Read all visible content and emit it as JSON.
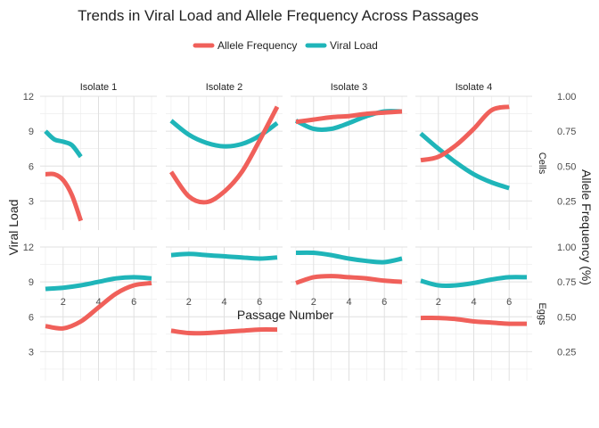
{
  "chart_data": {
    "type": "line",
    "title": "Trends in Viral Load and Allele Frequency Across Passages",
    "xlabel": "Passage Number",
    "ylabel_left": "Viral Load",
    "ylabel_right": "Allele Frequency (%)",
    "legend": {
      "position": "top",
      "entries": [
        {
          "name": "Allele Frequency",
          "color": "#F0605A"
        },
        {
          "name": "Viral Load",
          "color": "#1FB5B9"
        }
      ]
    },
    "columns": [
      "Isolate 1",
      "Isolate 2",
      "Isolate 3",
      "Isolate 4"
    ],
    "rows": [
      "Cells",
      "Eggs"
    ],
    "x_ticks": [
      2,
      4,
      6
    ],
    "xlim": [
      0.7,
      7.3
    ],
    "y_left_ticks": [
      3,
      6,
      9,
      12
    ],
    "ylim_left": [
      0.5,
      12
    ],
    "y_right_ticks": [
      "0.25",
      "0.50",
      "0.75",
      "1.00"
    ],
    "grid": true,
    "panels": [
      {
        "row": "Cells",
        "col": "Isolate 1",
        "series": [
          {
            "name": "Viral Load",
            "x": [
              1,
              1.5,
              2,
              2.5,
              3
            ],
            "y": [
              9.0,
              8.3,
              8.1,
              7.8,
              6.8
            ]
          },
          {
            "name": "Allele Frequency",
            "x": [
              1,
              1.5,
              2,
              2.5,
              3
            ],
            "y": [
              5.3,
              5.3,
              4.8,
              3.5,
              1.3
            ]
          }
        ]
      },
      {
        "row": "Cells",
        "col": "Isolate 2",
        "series": [
          {
            "name": "Viral Load",
            "x": [
              1,
              2,
              3,
              4,
              5,
              6,
              7
            ],
            "y": [
              9.9,
              8.7,
              8.0,
              7.7,
              7.9,
              8.6,
              9.7
            ]
          },
          {
            "name": "Allele Frequency",
            "x": [
              1,
              2,
              3,
              4,
              5,
              6,
              7
            ],
            "y": [
              5.5,
              3.4,
              2.9,
              3.8,
              5.5,
              8.2,
              11.1
            ]
          }
        ]
      },
      {
        "row": "Cells",
        "col": "Isolate 3",
        "series": [
          {
            "name": "Viral Load",
            "x": [
              1,
              2,
              3,
              4,
              5,
              6,
              7
            ],
            "y": [
              9.9,
              9.2,
              9.2,
              9.7,
              10.3,
              10.7,
              10.7
            ]
          },
          {
            "name": "Allele Frequency",
            "x": [
              1,
              2,
              3,
              4,
              5,
              6,
              7
            ],
            "y": [
              9.8,
              10.0,
              10.2,
              10.3,
              10.5,
              10.6,
              10.7
            ]
          }
        ]
      },
      {
        "row": "Cells",
        "col": "Isolate 4",
        "series": [
          {
            "name": "Viral Load",
            "x": [
              1,
              2,
              3,
              4,
              5,
              6
            ],
            "y": [
              8.8,
              7.5,
              6.3,
              5.3,
              4.6,
              4.1
            ]
          },
          {
            "name": "Allele Frequency",
            "x": [
              1,
              2,
              3,
              4,
              5,
              6
            ],
            "y": [
              6.5,
              6.8,
              7.8,
              9.2,
              10.8,
              11.1
            ]
          }
        ]
      },
      {
        "row": "Eggs",
        "col": "Isolate 1",
        "series": [
          {
            "name": "Viral Load",
            "x": [
              1,
              2,
              3,
              4,
              5,
              6,
              7
            ],
            "y": [
              8.4,
              8.5,
              8.7,
              9.0,
              9.3,
              9.4,
              9.3
            ]
          },
          {
            "name": "Allele Frequency",
            "x": [
              1,
              2,
              3,
              4,
              5,
              6,
              7
            ],
            "y": [
              5.2,
              5.0,
              5.6,
              6.8,
              8.0,
              8.7,
              8.9
            ]
          }
        ]
      },
      {
        "row": "Eggs",
        "col": "Isolate 2",
        "series": [
          {
            "name": "Viral Load",
            "x": [
              1,
              2,
              3,
              4,
              5,
              6,
              7
            ],
            "y": [
              11.3,
              11.4,
              11.3,
              11.2,
              11.1,
              11.0,
              11.1
            ]
          },
          {
            "name": "Allele Frequency",
            "x": [
              1,
              2,
              3,
              4,
              5,
              6,
              7
            ],
            "y": [
              4.8,
              4.6,
              4.6,
              4.7,
              4.8,
              4.9,
              4.9
            ]
          }
        ]
      },
      {
        "row": "Eggs",
        "col": "Isolate 3",
        "series": [
          {
            "name": "Viral Load",
            "x": [
              1,
              2,
              3,
              4,
              5,
              6,
              7
            ],
            "y": [
              11.5,
              11.5,
              11.3,
              11.0,
              10.8,
              10.7,
              11.0
            ]
          },
          {
            "name": "Allele Frequency",
            "x": [
              1,
              2,
              3,
              4,
              5,
              6,
              7
            ],
            "y": [
              8.9,
              9.4,
              9.5,
              9.4,
              9.3,
              9.1,
              9.0
            ]
          }
        ]
      },
      {
        "row": "Eggs",
        "col": "Isolate 4",
        "series": [
          {
            "name": "Viral Load",
            "x": [
              1,
              2,
              3,
              4,
              5,
              6,
              7
            ],
            "y": [
              9.1,
              8.7,
              8.7,
              8.9,
              9.2,
              9.4,
              9.4
            ]
          },
          {
            "name": "Allele Frequency",
            "x": [
              1,
              2,
              3,
              4,
              5,
              6,
              7
            ],
            "y": [
              5.9,
              5.9,
              5.8,
              5.6,
              5.5,
              5.4,
              5.4
            ]
          }
        ]
      }
    ]
  }
}
